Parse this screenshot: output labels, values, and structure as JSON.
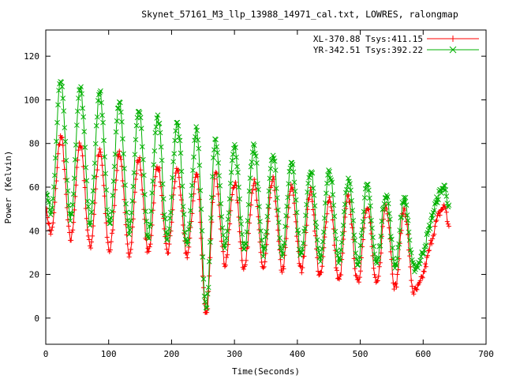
{
  "chart_data": {
    "type": "line",
    "title": "Skynet_57161_M3_llp_13988_14971_cal.txt, LOWRES, ralongmap",
    "xlabel": "Time(Seconds)",
    "ylabel": "Power (Kelvin)",
    "xlim": [
      0,
      700
    ],
    "ylim": [
      -12,
      132
    ],
    "x_ticks": [
      0,
      100,
      200,
      300,
      400,
      500,
      600,
      700
    ],
    "y_ticks": [
      0,
      20,
      40,
      60,
      80,
      100,
      120
    ],
    "legend_position": "top-right",
    "grid": false,
    "oscillation": {
      "peak_times": [
        24,
        55,
        86,
        117,
        148,
        178,
        209,
        240,
        270,
        300,
        331,
        361,
        391,
        421,
        451,
        481,
        511,
        541,
        570
      ],
      "start_time": 0,
      "end_time": 641
    },
    "series": [
      {
        "name": "XL-370.88 Tsys:411.15",
        "color": "#ff0000",
        "marker": "+",
        "peaks": [
          83,
          80,
          76,
          76,
          73,
          70,
          68,
          66,
          66,
          62,
          62,
          63,
          60,
          58,
          55,
          55,
          52,
          52,
          50
        ],
        "troughs": [
          39,
          36,
          33,
          31,
          30,
          30,
          30,
          29,
          2,
          25,
          23,
          23,
          22,
          22,
          19,
          17,
          16,
          15,
          14,
          12
        ],
        "end_level": 41
      },
      {
        "name": "YR-342.51 Tsys:392.22",
        "color": "#00b000",
        "marker": "x",
        "peaks": [
          109,
          105,
          103,
          98,
          95,
          92,
          89,
          86,
          82,
          78,
          79,
          75,
          72,
          68,
          67,
          63,
          60,
          57,
          55
        ],
        "troughs": [
          48,
          46,
          44,
          42,
          40,
          38,
          36,
          34,
          5,
          33,
          31,
          30,
          30,
          29,
          27,
          27,
          26,
          25,
          24,
          23
        ],
        "end_level": 50
      }
    ]
  }
}
